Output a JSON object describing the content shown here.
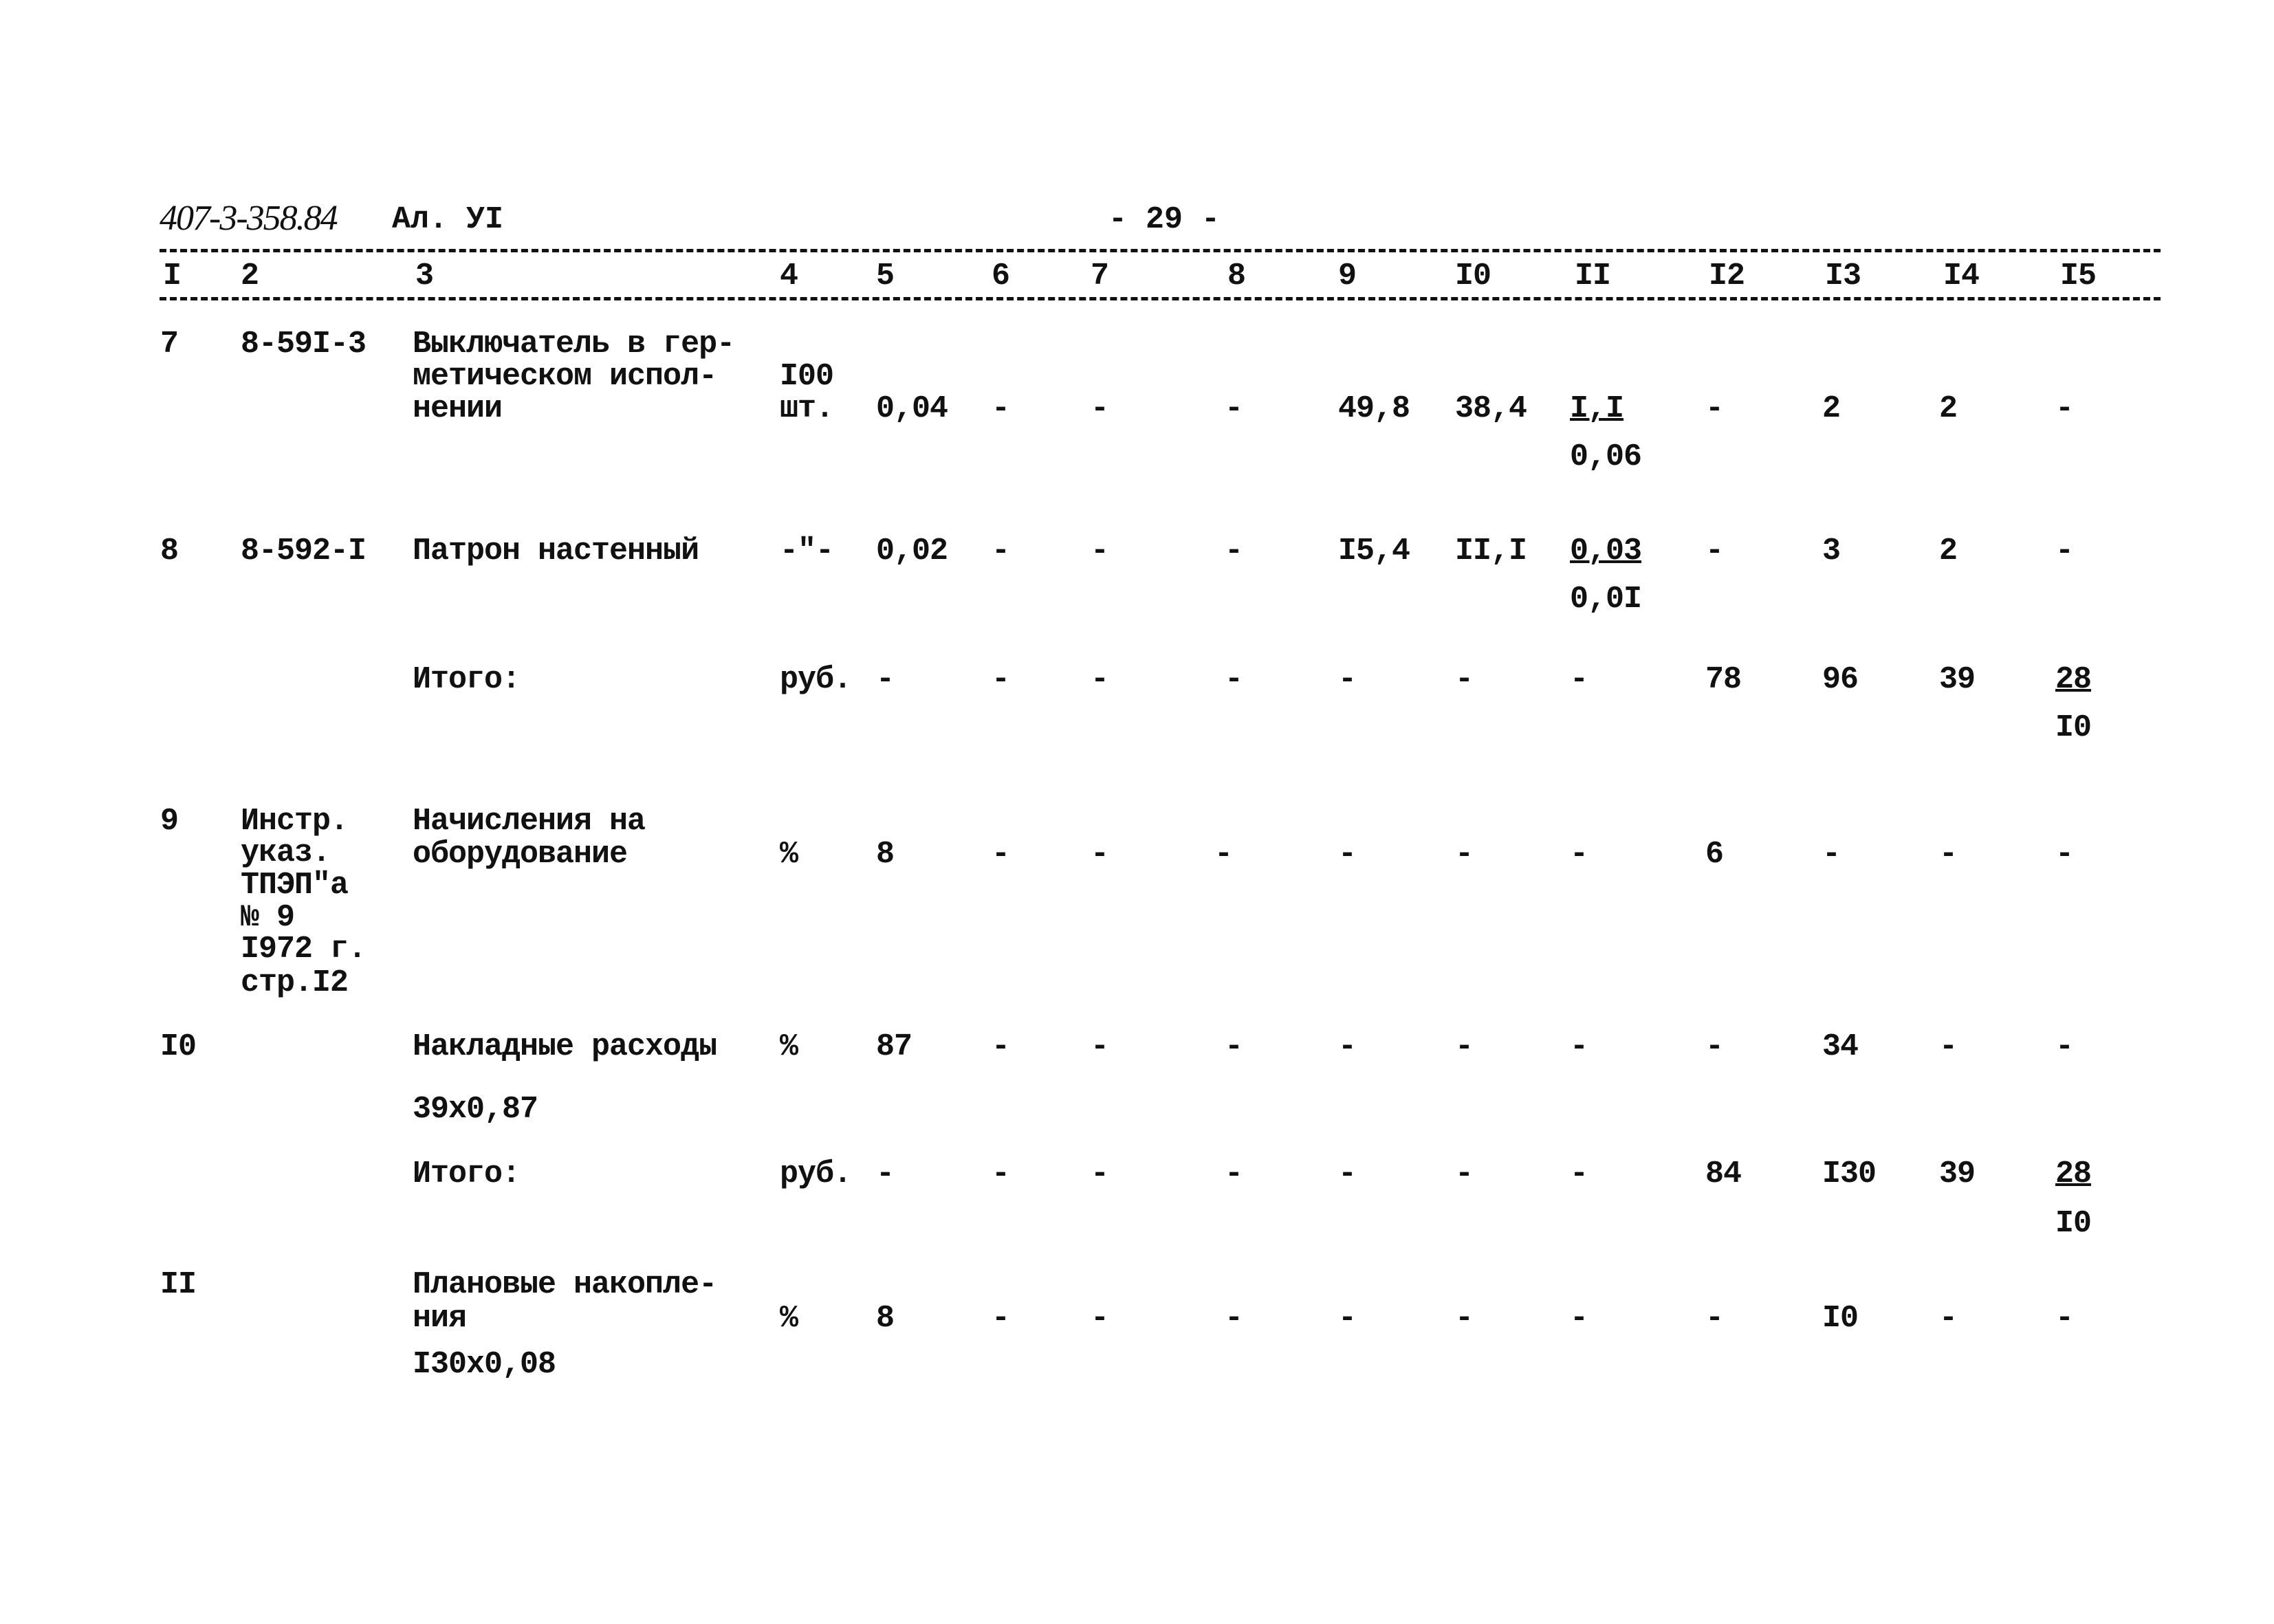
{
  "header": {
    "doc_code": "407-3-358.84",
    "album": "Ал. УI",
    "page": "- 29 -"
  },
  "column_numbers": [
    "I",
    "2",
    "3",
    "4",
    "5",
    "6",
    "7",
    "8",
    "9",
    "I0",
    "II",
    "I2",
    "I3",
    "I4",
    "I5"
  ],
  "rows": [
    {
      "c1": [
        "7"
      ],
      "c2": [
        "8-59I-3"
      ],
      "c3": [
        "Выключатель в гер-",
        "метическом испол-",
        "нении"
      ],
      "c4": [
        "I00",
        "шт."
      ],
      "c5": [
        "0,04"
      ],
      "c6": [
        "-"
      ],
      "c7": [
        "-"
      ],
      "c8": [
        "-"
      ],
      "c9": [
        "49,8"
      ],
      "c10": [
        "38,4"
      ],
      "c11": [
        "I,I",
        "0,06"
      ],
      "c12": [
        "-"
      ],
      "c13": [
        "2"
      ],
      "c14": [
        "2"
      ],
      "c15": [
        "-"
      ]
    },
    {
      "c1": [
        "8"
      ],
      "c2": [
        "8-592-I"
      ],
      "c3": [
        "Патрон настенный"
      ],
      "c4": [
        "-\"-"
      ],
      "c5": [
        "0,02"
      ],
      "c6": [
        "-"
      ],
      "c7": [
        "-"
      ],
      "c8": [
        "-"
      ],
      "c9": [
        "I5,4"
      ],
      "c10": [
        "II,I"
      ],
      "c11": [
        "0,03",
        "0,0I"
      ],
      "c12": [
        "-"
      ],
      "c13": [
        "3"
      ],
      "c14": [
        "2"
      ],
      "c15": [
        "-"
      ]
    },
    {
      "c3": [
        "Итого:"
      ],
      "c4": [
        "руб."
      ],
      "c5": [
        "-"
      ],
      "c6": [
        "-"
      ],
      "c7": [
        "-"
      ],
      "c8": [
        "-"
      ],
      "c9": [
        "-"
      ],
      "c10": [
        "-"
      ],
      "c11": [
        "-"
      ],
      "c12": [
        "78"
      ],
      "c13": [
        "96"
      ],
      "c14": [
        "39"
      ],
      "c15": [
        "28",
        "I0"
      ]
    },
    {
      "c1": [
        "9"
      ],
      "c2": [
        "Инстр.",
        "указ.",
        "ТПЭП\"а",
        "№ 9",
        "I972 г.",
        "стр.I2"
      ],
      "c3": [
        "Начисления на",
        "оборудование"
      ],
      "c4": [
        "%"
      ],
      "c5": [
        "8"
      ],
      "c6": [
        "-"
      ],
      "c7": [
        "-"
      ],
      "c8": [
        "-"
      ],
      "c9": [
        "-"
      ],
      "c10": [
        "-"
      ],
      "c11": [
        "-"
      ],
      "c12": [
        "6"
      ],
      "c13": [
        "-"
      ],
      "c14": [
        "-"
      ],
      "c15": [
        "-"
      ]
    },
    {
      "c1": [
        "I0"
      ],
      "c3": [
        "Накладные расходы",
        "39х0,87"
      ],
      "c4": [
        "%"
      ],
      "c5": [
        "87"
      ],
      "c6": [
        "-"
      ],
      "c7": [
        "-"
      ],
      "c8": [
        "-"
      ],
      "c9": [
        "-"
      ],
      "c10": [
        "-"
      ],
      "c11": [
        "-"
      ],
      "c12": [
        "-"
      ],
      "c13": [
        "34"
      ],
      "c14": [
        "-"
      ],
      "c15": [
        "-"
      ]
    },
    {
      "c3": [
        "Итого:"
      ],
      "c4": [
        "руб."
      ],
      "c5": [
        "-"
      ],
      "c6": [
        "-"
      ],
      "c7": [
        "-"
      ],
      "c8": [
        "-"
      ],
      "c9": [
        "-"
      ],
      "c10": [
        "-"
      ],
      "c11": [
        "-"
      ],
      "c12": [
        "84"
      ],
      "c13": [
        "I30"
      ],
      "c14": [
        "39"
      ],
      "c15": [
        "28",
        "I0"
      ]
    },
    {
      "c1": [
        "II"
      ],
      "c3": [
        "Плановые накопле-",
        "ния",
        "I30х0,08"
      ],
      "c4": [
        "%"
      ],
      "c5": [
        "8"
      ],
      "c6": [
        "-"
      ],
      "c7": [
        "-"
      ],
      "c8": [
        "-"
      ],
      "c9": [
        "-"
      ],
      "c10": [
        "-"
      ],
      "c11": [
        "-"
      ],
      "c12": [
        "-"
      ],
      "c13": [
        "I0"
      ],
      "c14": [
        "-"
      ],
      "c15": [
        "-"
      ]
    }
  ]
}
